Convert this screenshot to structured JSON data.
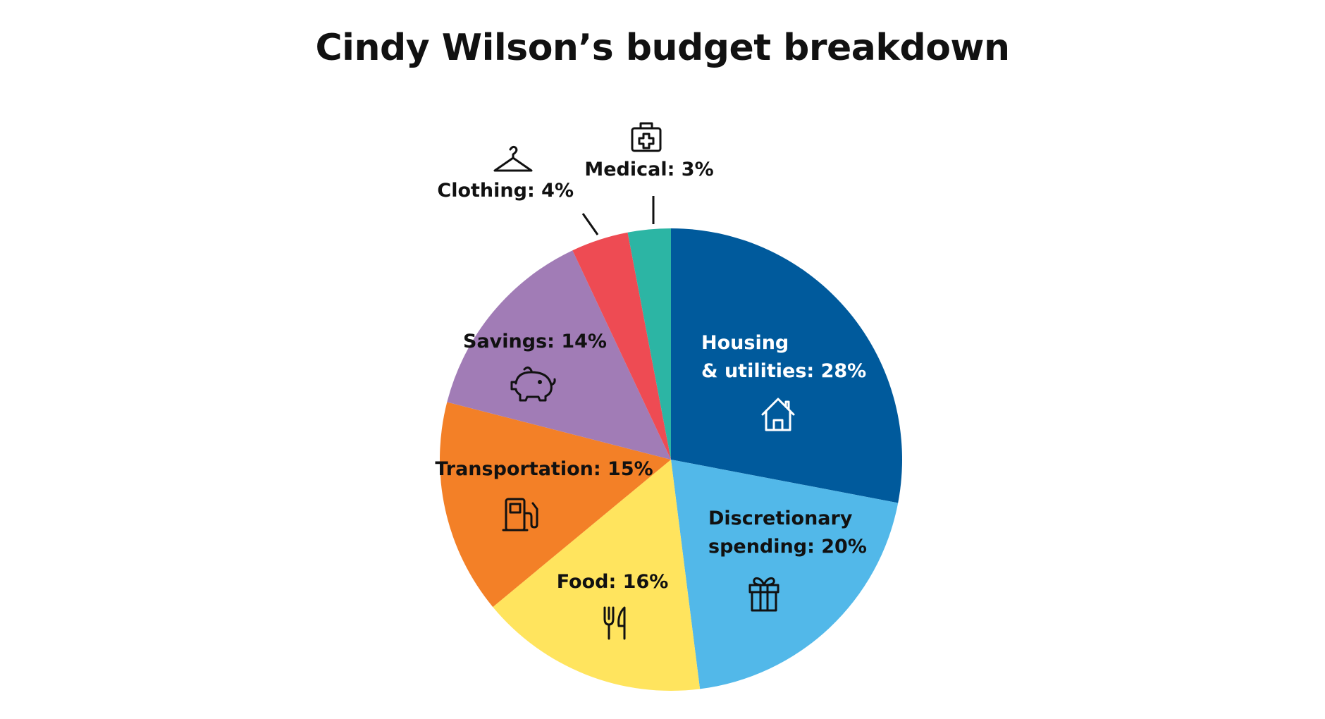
{
  "chart_data": {
    "type": "pie",
    "title": "Cindy Wilson’s budget breakdown",
    "start_angle": "12 o'clock, clockwise",
    "slices": [
      {
        "category": "Housing & utilities",
        "value": 28,
        "label_lines": [
          "Housing",
          "& utilities: 28%"
        ],
        "color": "#005A9C",
        "label_color": "#ffffff",
        "icon": "house-icon"
      },
      {
        "category": "Discretionary spending",
        "value": 20,
        "label_lines": [
          "Discretionary",
          "spending: 20%"
        ],
        "color": "#52B8E9",
        "label_color": "#111111",
        "icon": "gift-icon"
      },
      {
        "category": "Food",
        "value": 16,
        "label_lines": [
          "Food: 16%"
        ],
        "color": "#FFE45E",
        "label_color": "#111111",
        "icon": "fork-knife-icon"
      },
      {
        "category": "Transportation",
        "value": 15,
        "label_lines": [
          "Transportation: 15%"
        ],
        "color": "#F38027",
        "label_color": "#111111",
        "icon": "gas-pump-icon"
      },
      {
        "category": "Savings",
        "value": 14,
        "label_lines": [
          "Savings: 14%"
        ],
        "color": "#A17CB6",
        "label_color": "#111111",
        "icon": "piggy-bank-icon"
      },
      {
        "category": "Clothing",
        "value": 4,
        "label_lines": [
          "Clothing: 4%"
        ],
        "color": "#EE4B53",
        "label_color": "#111111",
        "icon": "hanger-icon"
      },
      {
        "category": "Medical",
        "value": 3,
        "label_lines": [
          "Medical: 3%"
        ],
        "color": "#2CB5A4",
        "label_color": "#111111",
        "icon": "first-aid-kit-icon"
      }
    ]
  }
}
